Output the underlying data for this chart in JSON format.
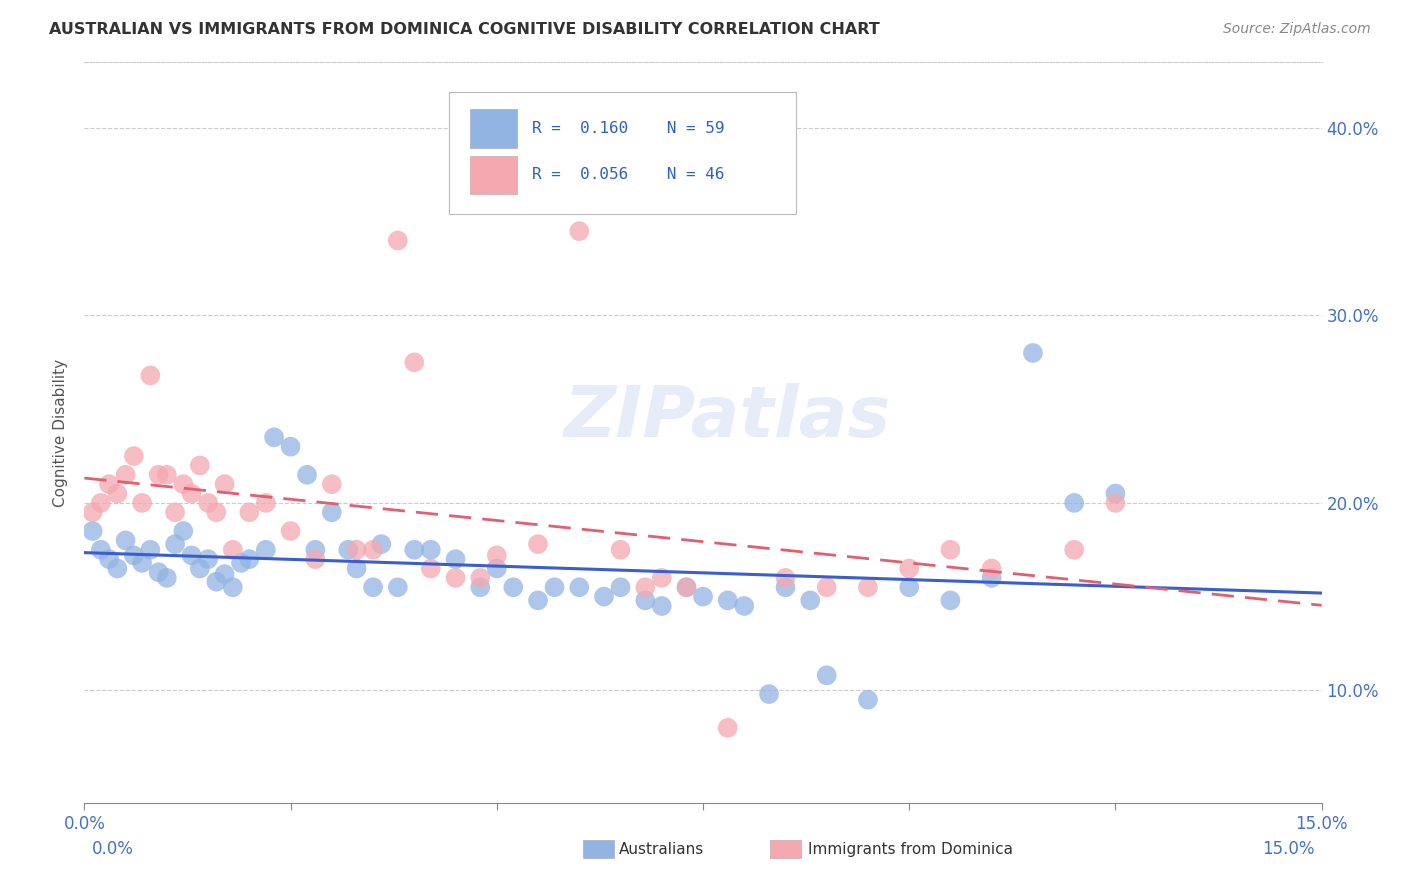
{
  "title": "AUSTRALIAN VS IMMIGRANTS FROM DOMINICA COGNITIVE DISABILITY CORRELATION CHART",
  "source": "Source: ZipAtlas.com",
  "ylabel": "Cognitive Disability",
  "ytick_vals": [
    0.1,
    0.2,
    0.3,
    0.4
  ],
  "ytick_labels": [
    "10.0%",
    "20.0%",
    "30.0%",
    "40.0%"
  ],
  "xtick_vals": [
    0.0,
    0.025,
    0.05,
    0.075,
    0.1,
    0.125,
    0.15
  ],
  "xlim": [
    0.0,
    0.15
  ],
  "ylim": [
    0.04,
    0.435
  ],
  "R_blue": 0.16,
  "N_blue": 59,
  "R_pink": 0.056,
  "N_pink": 46,
  "color_blue": "#92B4E3",
  "color_pink": "#F4A8B0",
  "line_blue": "#3A5FCD",
  "line_pink": "#E06070",
  "watermark": "ZIPatlas",
  "legend_label_blue": "Australians",
  "legend_label_pink": "Immigrants from Dominica",
  "blue_x": [
    0.001,
    0.002,
    0.003,
    0.004,
    0.005,
    0.006,
    0.007,
    0.008,
    0.009,
    0.01,
    0.011,
    0.012,
    0.013,
    0.014,
    0.015,
    0.016,
    0.017,
    0.018,
    0.019,
    0.02,
    0.022,
    0.023,
    0.025,
    0.027,
    0.028,
    0.03,
    0.032,
    0.033,
    0.035,
    0.036,
    0.038,
    0.04,
    0.042,
    0.045,
    0.048,
    0.05,
    0.052,
    0.055,
    0.057,
    0.06,
    0.063,
    0.065,
    0.068,
    0.07,
    0.073,
    0.075,
    0.078,
    0.08,
    0.083,
    0.085,
    0.088,
    0.09,
    0.095,
    0.1,
    0.105,
    0.11,
    0.115,
    0.12,
    0.125
  ],
  "blue_y": [
    0.185,
    0.175,
    0.17,
    0.165,
    0.18,
    0.172,
    0.168,
    0.175,
    0.163,
    0.16,
    0.178,
    0.185,
    0.172,
    0.165,
    0.17,
    0.158,
    0.162,
    0.155,
    0.168,
    0.17,
    0.175,
    0.235,
    0.23,
    0.215,
    0.175,
    0.195,
    0.175,
    0.165,
    0.155,
    0.178,
    0.155,
    0.175,
    0.175,
    0.17,
    0.155,
    0.165,
    0.155,
    0.148,
    0.155,
    0.155,
    0.15,
    0.155,
    0.148,
    0.145,
    0.155,
    0.15,
    0.148,
    0.145,
    0.098,
    0.155,
    0.148,
    0.108,
    0.095,
    0.155,
    0.148,
    0.16,
    0.28,
    0.2,
    0.205
  ],
  "pink_x": [
    0.001,
    0.002,
    0.003,
    0.004,
    0.005,
    0.006,
    0.007,
    0.008,
    0.009,
    0.01,
    0.011,
    0.012,
    0.013,
    0.014,
    0.015,
    0.016,
    0.017,
    0.018,
    0.02,
    0.022,
    0.025,
    0.028,
    0.03,
    0.033,
    0.035,
    0.038,
    0.04,
    0.042,
    0.045,
    0.048,
    0.05,
    0.055,
    0.06,
    0.065,
    0.068,
    0.07,
    0.073,
    0.078,
    0.085,
    0.09,
    0.095,
    0.1,
    0.105,
    0.11,
    0.12,
    0.125
  ],
  "pink_y": [
    0.195,
    0.2,
    0.21,
    0.205,
    0.215,
    0.225,
    0.2,
    0.268,
    0.215,
    0.215,
    0.195,
    0.21,
    0.205,
    0.22,
    0.2,
    0.195,
    0.21,
    0.175,
    0.195,
    0.2,
    0.185,
    0.17,
    0.21,
    0.175,
    0.175,
    0.34,
    0.275,
    0.165,
    0.16,
    0.16,
    0.172,
    0.178,
    0.345,
    0.175,
    0.155,
    0.16,
    0.155,
    0.08,
    0.16,
    0.155,
    0.155,
    0.165,
    0.175,
    0.165,
    0.175,
    0.2
  ]
}
